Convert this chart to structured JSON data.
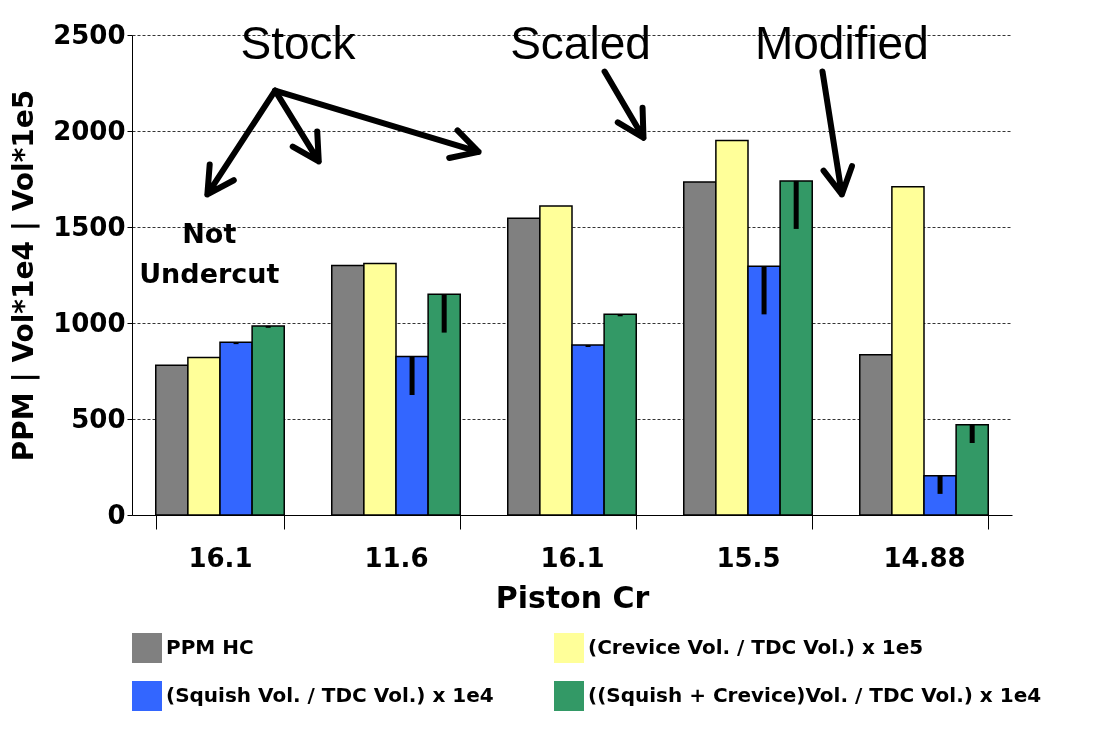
{
  "chart_data": {
    "type": "bar",
    "xlabel": "Piston Cr",
    "ylabel": "PPM | Vol*1e4 | Vol*1e5",
    "categories": [
      "16.1",
      "11.6",
      "16.1",
      "15.5",
      "14.88"
    ],
    "series": [
      {
        "name": "PPM HC",
        "color": "#808080",
        "values": [
          780,
          1300,
          1545,
          1735,
          835
        ]
      },
      {
        "name": "(Crevice Vol. / TDC Vol.) x 1e5",
        "color": "#ffff99",
        "values": [
          820,
          1310,
          1610,
          1950,
          1710
        ]
      },
      {
        "name": "(Squish Vol. / TDC Vol.) x 1e4",
        "color": "#3366ff",
        "values": [
          900,
          825,
          885,
          1295,
          205
        ],
        "errors": [
          [
            890,
            900
          ],
          [
            625,
            825
          ],
          [
            875,
            885
          ],
          [
            1045,
            1295
          ],
          [
            110,
            205
          ]
        ]
      },
      {
        "name": "((Squish + Crevice)Vol. / TDC Vol.) x 1e4",
        "color": "#339966",
        "values": [
          985,
          1150,
          1045,
          1740,
          470
        ],
        "errors": [
          [
            975,
            985
          ],
          [
            950,
            1150
          ],
          [
            1035,
            1045
          ],
          [
            1490,
            1740
          ],
          [
            375,
            470
          ]
        ]
      }
    ],
    "ylim": [
      0,
      2500
    ],
    "yticks": [
      0,
      500,
      1000,
      1500,
      2000,
      2500
    ],
    "grid": "y",
    "legend": "bottom",
    "annotations": [
      "Stock",
      "Scaled",
      "Modified",
      "Not Undercut"
    ]
  }
}
